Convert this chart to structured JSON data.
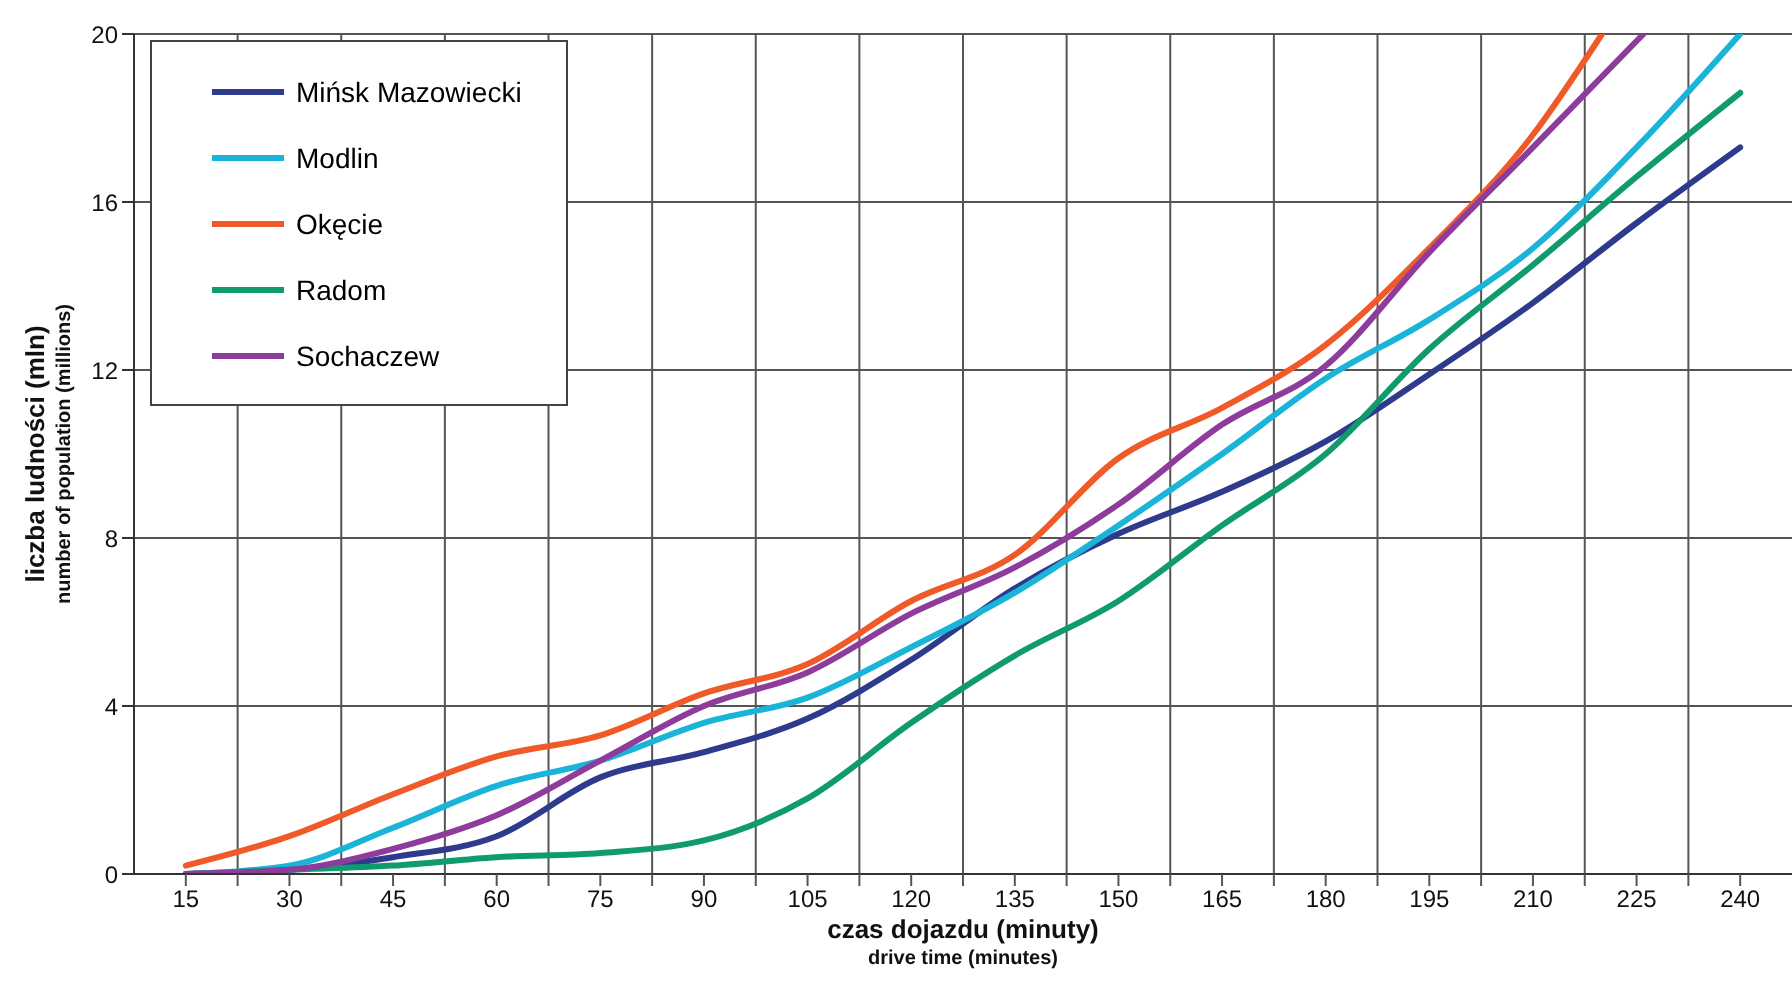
{
  "chart_data": {
    "type": "line",
    "xlabel": "czas dojazdu (minuty)\ndrive time (minutes)",
    "ylabel": "liczba ludności (mln)\nnumber of population (millions)",
    "x": [
      15,
      30,
      45,
      60,
      75,
      90,
      105,
      120,
      135,
      150,
      165,
      180,
      195,
      210,
      225,
      240
    ],
    "xlim": [
      7.5,
      247.5
    ],
    "xticks": [
      15,
      {
        "value": 22.5,
        "label": null
      },
      30,
      {
        "value": 37.5,
        "label": null
      },
      45,
      {
        "value": 52.5,
        "label": null
      },
      60,
      {
        "value": 67.5,
        "label": null
      },
      75,
      {
        "value": 82.5,
        "label": null
      },
      90,
      {
        "value": 97.5,
        "label": null
      },
      105,
      {
        "value": 112.5,
        "label": null
      },
      120,
      {
        "value": 127.5,
        "label": null
      },
      135,
      {
        "value": 142.5,
        "label": null
      },
      150,
      {
        "value": 157.5,
        "label": null
      },
      165,
      {
        "value": 172.5,
        "label": null
      },
      180,
      {
        "value": 187.5,
        "label": null
      },
      195,
      {
        "value": 202.5,
        "label": null
      },
      210,
      {
        "value": 217.5,
        "label": null
      },
      225,
      {
        "value": 232.5,
        "label": null
      },
      240
    ],
    "ylim": [
      0,
      20
    ],
    "yticks": [
      0,
      4,
      8,
      12,
      16,
      20
    ],
    "grid": true,
    "legend": "top left",
    "marker": "none",
    "line_style": "solid",
    "series": [
      {
        "name": "Mińsk Mazowiecki",
        "color": "#2e3a8c",
        "values": [
          0,
          0.1,
          0.4,
          0.9,
          2.3,
          2.9,
          3.7,
          5.1,
          6.8,
          8.1,
          9.1,
          10.3,
          11.9,
          13.6,
          15.5,
          17.3
        ]
      },
      {
        "name": "Modlin",
        "color": "#1ab4d8",
        "values": [
          0,
          0.2,
          1.1,
          2.1,
          2.7,
          3.6,
          4.2,
          5.4,
          6.7,
          8.3,
          10.0,
          11.8,
          13.2,
          14.9,
          17.3,
          20.0
        ]
      },
      {
        "name": "Okęcie",
        "color": "#f05a28",
        "x": [
          15,
          30,
          45,
          60,
          75,
          90,
          105,
          120,
          135,
          150,
          165,
          180,
          195,
          210,
          220
        ],
        "values": [
          0.2,
          0.9,
          1.9,
          2.8,
          3.3,
          4.3,
          5.0,
          6.5,
          7.6,
          9.9,
          11.1,
          12.6,
          14.9,
          17.6,
          20.0
        ]
      },
      {
        "name": "Radom",
        "color": "#0f9b6e",
        "values": [
          0,
          0.1,
          0.2,
          0.4,
          0.5,
          0.8,
          1.8,
          3.6,
          5.2,
          6.5,
          8.3,
          10.0,
          12.5,
          14.5,
          16.6,
          18.6
        ]
      },
      {
        "name": "Sochaczew",
        "color": "#8e3c9c",
        "x": [
          15,
          30,
          45,
          60,
          75,
          90,
          105,
          120,
          135,
          150,
          165,
          180,
          195,
          210,
          226
        ],
        "values": [
          0,
          0.1,
          0.6,
          1.4,
          2.7,
          4.0,
          4.8,
          6.2,
          7.3,
          8.8,
          10.7,
          12.1,
          14.8,
          17.3,
          20.0
        ]
      }
    ]
  }
}
